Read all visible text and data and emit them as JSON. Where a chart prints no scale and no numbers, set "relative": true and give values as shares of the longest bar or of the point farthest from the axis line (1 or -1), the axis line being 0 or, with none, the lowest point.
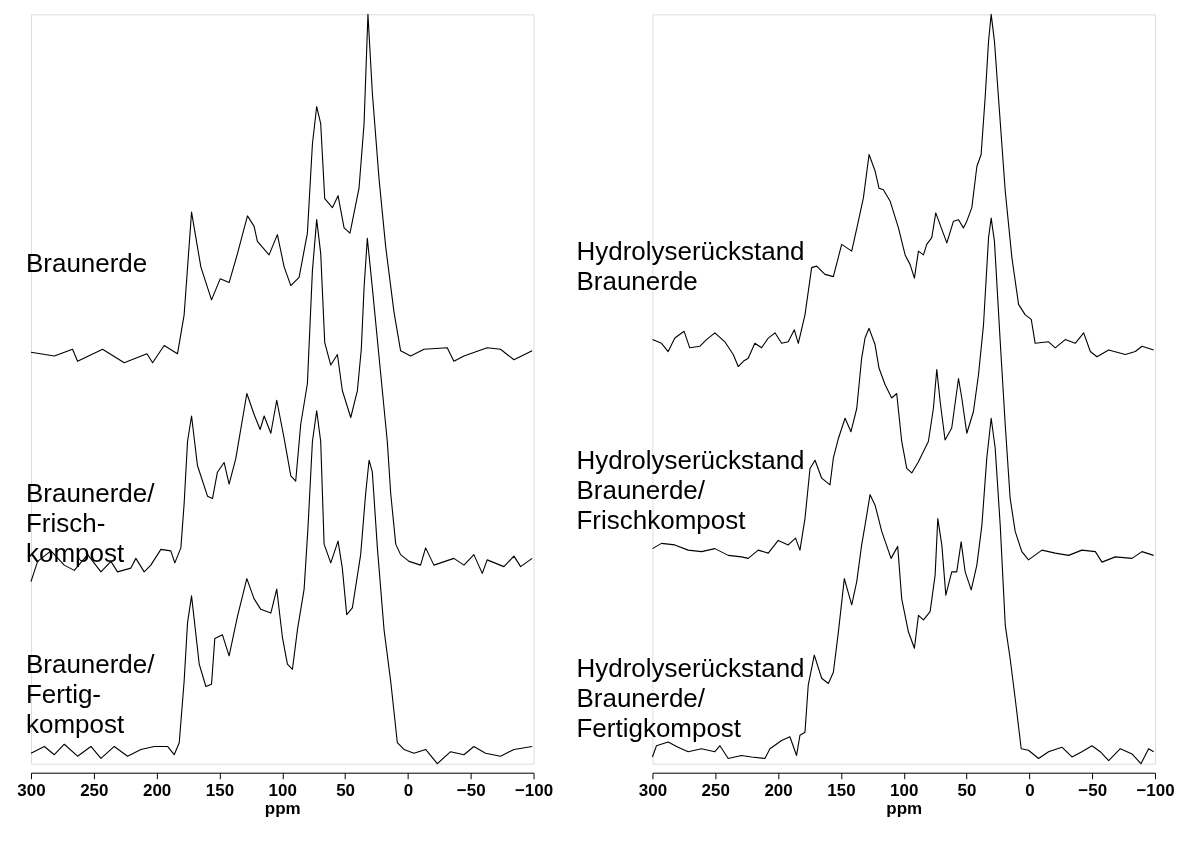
{
  "chart_data": [
    {
      "type": "line",
      "relative": true,
      "xlabel": "ppm",
      "xlim": [
        300,
        -100
      ],
      "xticks": [
        300,
        250,
        200,
        150,
        100,
        50,
        0,
        -50,
        -100
      ],
      "grid": false,
      "series": [
        {
          "name": "Braunerde",
          "color": "#000000",
          "x": [
            300.0,
            281.4,
            266.9,
            262.9,
            243.0,
            225.8,
            207.7,
            203.2,
            194.0,
            183.4,
            178.1,
            172.2,
            164.8,
            156.3,
            149.4,
            142.3,
            135.6,
            127.7,
            122.4,
            119.8,
            110.5,
            103.9,
            98.5,
            93.2,
            86.6,
            80.0,
            76.0,
            72.6,
            69.4,
            66.2,
            60.1,
            55.6,
            50.8,
            46.1,
            38.9,
            34.9,
            31.8,
            28.3,
            23.0,
            17.7,
            11.1,
            5.8,
            -2.2,
            -12.8,
            -31.3,
            -36.6,
            -44.6,
            -63.1,
            -73.7,
            -84.4,
            -98.9
          ],
          "values": [
            0.549,
            0.544,
            0.553,
            0.537,
            0.553,
            0.535,
            0.547,
            0.535,
            0.558,
            0.547,
            0.599,
            0.736,
            0.663,
            0.619,
            0.647,
            0.642,
            0.681,
            0.731,
            0.717,
            0.697,
            0.679,
            0.706,
            0.663,
            0.638,
            0.649,
            0.708,
            0.827,
            0.877,
            0.854,
            0.754,
            0.742,
            0.758,
            0.715,
            0.708,
            0.768,
            0.854,
            1.0,
            0.895,
            0.781,
            0.69,
            0.603,
            0.551,
            0.544,
            0.553,
            0.555,
            0.537,
            0.544,
            0.555,
            0.553,
            0.539,
            0.551
          ]
        },
        {
          "name": "Braunerde/\nFrisch-\nkompost",
          "color": "#000000",
          "x": [
            300.0,
            294.7,
            284.1,
            273.5,
            265.5,
            254.9,
            244.3,
            236.4,
            231.1,
            220.5,
            216.5,
            209.9,
            204.6,
            196.6,
            188.7,
            185.5,
            180.7,
            178.1,
            175.4,
            172.2,
            167.5,
            159.5,
            155.5,
            151.6,
            146.3,
            142.3,
            137.0,
            128.2,
            122.4,
            117.6,
            114.4,
            109.1,
            104.4,
            98.5,
            93.2,
            89.3,
            85.3,
            80.0,
            76.0,
            72.6,
            69.4,
            66.2,
            61.4,
            56.1,
            52.2,
            45.5,
            40.2,
            37.1,
            34.9,
            32.3,
            28.3,
            21.7,
            16.4,
            13.7,
            9.7,
            5.8,
            -0.9,
            -10.1,
            -14.1,
            -20.7,
            -36.6,
            -44.6,
            -52.5,
            -59.2,
            -63.1,
            -76.4,
            -84.4,
            -89.7,
            -98.9
          ],
          "values": [
            0.243,
            0.27,
            0.284,
            0.265,
            0.258,
            0.279,
            0.256,
            0.27,
            0.256,
            0.261,
            0.274,
            0.256,
            0.265,
            0.286,
            0.284,
            0.268,
            0.288,
            0.347,
            0.43,
            0.464,
            0.398,
            0.357,
            0.354,
            0.389,
            0.402,
            0.373,
            0.407,
            0.494,
            0.466,
            0.446,
            0.464,
            0.441,
            0.485,
            0.434,
            0.384,
            0.377,
            0.453,
            0.507,
            0.658,
            0.726,
            0.681,
            0.562,
            0.532,
            0.546,
            0.498,
            0.462,
            0.498,
            0.553,
            0.635,
            0.701,
            0.635,
            0.521,
            0.43,
            0.361,
            0.293,
            0.279,
            0.27,
            0.265,
            0.288,
            0.265,
            0.274,
            0.265,
            0.279,
            0.254,
            0.272,
            0.263,
            0.277,
            0.263,
            0.274
          ]
        },
        {
          "name": "Braunerde/\nFertig-\nkompost",
          "color": "#000000",
          "x": [
            300.0,
            289.4,
            281.4,
            273.5,
            262.9,
            252.3,
            244.3,
            233.7,
            223.1,
            212.5,
            201.9,
            191.3,
            186.0,
            182.0,
            178.1,
            175.4,
            172.2,
            166.1,
            160.8,
            156.3,
            153.7,
            147.6,
            142.3,
            135.6,
            128.2,
            122.4,
            117.1,
            109.1,
            104.4,
            99.9,
            95.9,
            91.9,
            87.9,
            82.6,
            79.5,
            76.0,
            72.6,
            69.4,
            66.7,
            61.4,
            55.6,
            52.2,
            48.7,
            44.2,
            37.6,
            33.6,
            30.9,
            28.3,
            24.3,
            19.0,
            13.7,
            8.4,
            3.1,
            -4.8,
            -14.1,
            -23.4,
            -34.0,
            -44.6,
            -52.5,
            -61.8,
            -73.7,
            -84.4,
            -98.9
          ],
          "values": [
            0.014,
            0.023,
            0.012,
            0.026,
            0.01,
            0.023,
            0.007,
            0.023,
            0.01,
            0.019,
            0.023,
            0.023,
            0.012,
            0.028,
            0.11,
            0.188,
            0.224,
            0.133,
            0.103,
            0.106,
            0.167,
            0.172,
            0.144,
            0.197,
            0.247,
            0.22,
            0.206,
            0.201,
            0.233,
            0.169,
            0.133,
            0.126,
            0.179,
            0.233,
            0.316,
            0.43,
            0.471,
            0.43,
            0.293,
            0.268,
            0.297,
            0.261,
            0.199,
            0.208,
            0.279,
            0.361,
            0.405,
            0.389,
            0.288,
            0.179,
            0.11,
            0.028,
            0.019,
            0.014,
            0.019,
            0.0,
            0.016,
            0.012,
            0.023,
            0.014,
            0.01,
            0.019,
            0.023
          ]
        }
      ]
    },
    {
      "type": "line",
      "relative": true,
      "xlabel": "ppm",
      "xlim": [
        300,
        -100
      ],
      "xticks": [
        300,
        250,
        200,
        150,
        100,
        50,
        0,
        -50,
        -100
      ],
      "grid": false,
      "series": [
        {
          "name": "Hydrolyserückstand\nBraunerde",
          "color": "#000000",
          "x": [
            300.0,
            292.8,
            287.5,
            282.2,
            274.8,
            270.3,
            262.3,
            257.0,
            250.3,
            242.4,
            235.7,
            231.7,
            227.7,
            223.8,
            218.5,
            213.1,
            207.8,
            202.5,
            197.2,
            191.9,
            187.1,
            183.9,
            178.6,
            173.3,
            169.3,
            162.7,
            156.0,
            149.4,
            141.4,
            136.1,
            132.1,
            127.6,
            122.8,
            119.7,
            116.2,
            110.9,
            104.2,
            98.9,
            94.9,
            91.5,
            88.3,
            84.3,
            81.7,
            77.7,
            74.5,
            71.0,
            65.7,
            60.4,
            56.4,
            52.5,
            49.8,
            45.8,
            41.8,
            38.4,
            35.2,
            32.5,
            30.4,
            27.8,
            24.0,
            19.2,
            13.9,
            8.6,
            3.3,
            -1.5,
            -4.6,
            -15.3,
            -20.6,
            -28.5,
            -36.5,
            -43.2,
            -48.5,
            -53.8,
            -63.1,
            -76.4,
            -84.3,
            -89.6,
            -98.9
          ],
          "values": [
            0.566,
            0.561,
            0.55,
            0.568,
            0.577,
            0.555,
            0.557,
            0.566,
            0.575,
            0.563,
            0.546,
            0.53,
            0.537,
            0.541,
            0.561,
            0.555,
            0.568,
            0.575,
            0.561,
            0.563,
            0.579,
            0.561,
            0.599,
            0.662,
            0.664,
            0.653,
            0.65,
            0.693,
            0.684,
            0.724,
            0.755,
            0.813,
            0.791,
            0.768,
            0.766,
            0.751,
            0.715,
            0.679,
            0.666,
            0.648,
            0.684,
            0.679,
            0.693,
            0.702,
            0.735,
            0.719,
            0.695,
            0.724,
            0.726,
            0.715,
            0.724,
            0.742,
            0.797,
            0.813,
            0.889,
            0.964,
            1.0,
            0.964,
            0.875,
            0.764,
            0.675,
            0.613,
            0.599,
            0.593,
            0.561,
            0.563,
            0.555,
            0.566,
            0.561,
            0.575,
            0.55,
            0.543,
            0.552,
            0.546,
            0.55,
            0.557,
            0.552
          ]
        },
        {
          "name": "Hydrolyserückstand\nBraunerde/\nFrischkompost",
          "color": "#000000",
          "x": [
            300.0,
            292.8,
            282.2,
            271.6,
            260.9,
            250.3,
            239.7,
            229.1,
            223.8,
            215.8,
            207.8,
            199.9,
            191.9,
            186.1,
            182.6,
            178.6,
            174.6,
            170.6,
            165.3,
            158.7,
            156.0,
            152.0,
            146.7,
            142.0,
            137.4,
            133.5,
            130.8,
            127.6,
            122.8,
            119.7,
            114.9,
            109.6,
            105.6,
            101.6,
            97.6,
            93.6,
            88.3,
            80.4,
            76.4,
            73.7,
            71.0,
            67.1,
            61.8,
            56.4,
            53.8,
            49.8,
            44.5,
            40.5,
            36.5,
            32.5,
            30.4,
            27.8,
            23.2,
            19.2,
            15.3,
            11.3,
            6.0,
            0.7,
            -10.0,
            -20.6,
            -31.2,
            -41.8,
            -52.5,
            -57.8,
            -68.4,
            -81.7,
            -89.6,
            -98.9
          ],
          "values": [
            0.287,
            0.294,
            0.292,
            0.285,
            0.283,
            0.287,
            0.278,
            0.276,
            0.274,
            0.285,
            0.281,
            0.298,
            0.292,
            0.301,
            0.285,
            0.327,
            0.394,
            0.405,
            0.381,
            0.372,
            0.408,
            0.434,
            0.461,
            0.443,
            0.474,
            0.541,
            0.568,
            0.581,
            0.559,
            0.528,
            0.506,
            0.488,
            0.494,
            0.43,
            0.394,
            0.388,
            0.403,
            0.43,
            0.474,
            0.526,
            0.483,
            0.432,
            0.448,
            0.514,
            0.488,
            0.441,
            0.47,
            0.519,
            0.586,
            0.702,
            0.728,
            0.697,
            0.563,
            0.452,
            0.354,
            0.31,
            0.283,
            0.272,
            0.285,
            0.281,
            0.278,
            0.285,
            0.283,
            0.269,
            0.276,
            0.274,
            0.283,
            0.278
          ]
        },
        {
          "name": "Hydrolyserückstand\nBraunerde/\nFertigkompost",
          "color": "#000000",
          "x": [
            300.0,
            296.8,
            287.5,
            279.6,
            271.6,
            260.9,
            250.3,
            246.3,
            239.7,
            229.1,
            221.1,
            210.5,
            206.5,
            197.2,
            190.6,
            185.3,
            182.6,
            178.6,
            176.0,
            171.2,
            165.3,
            160.0,
            156.0,
            152.0,
            147.3,
            141.4,
            137.4,
            133.5,
            130.8,
            126.8,
            122.8,
            117.5,
            110.1,
            104.8,
            101.6,
            96.3,
            91.5,
            88.3,
            84.3,
            79.0,
            75.0,
            72.9,
            69.7,
            66.5,
            61.8,
            57.8,
            54.3,
            51.1,
            46.3,
            41.8,
            37.8,
            33.9,
            30.4,
            27.2,
            23.2,
            19.2,
            15.3,
            11.3,
            6.5,
            0.7,
            -7.3,
            -15.3,
            -25.9,
            -33.9,
            -41.8,
            -49.8,
            -56.4,
            -63.1,
            -72.4,
            -81.7,
            -88.8,
            -94.9,
            -98.9
          ],
          "values": [
            0.009,
            0.024,
            0.029,
            0.022,
            0.016,
            0.02,
            0.016,
            0.024,
            0.007,
            0.011,
            0.009,
            0.007,
            0.02,
            0.031,
            0.036,
            0.011,
            0.038,
            0.042,
            0.105,
            0.145,
            0.114,
            0.107,
            0.122,
            0.176,
            0.247,
            0.212,
            0.243,
            0.292,
            0.318,
            0.359,
            0.345,
            0.31,
            0.274,
            0.29,
            0.22,
            0.176,
            0.154,
            0.198,
            0.192,
            0.203,
            0.252,
            0.327,
            0.292,
            0.225,
            0.256,
            0.256,
            0.296,
            0.256,
            0.232,
            0.265,
            0.318,
            0.408,
            0.461,
            0.421,
            0.318,
            0.185,
            0.14,
            0.087,
            0.02,
            0.018,
            0.007,
            0.016,
            0.022,
            0.009,
            0.016,
            0.024,
            0.016,
            0.004,
            0.02,
            0.013,
            0.0,
            0.02,
            0.016
          ]
        }
      ]
    }
  ]
}
